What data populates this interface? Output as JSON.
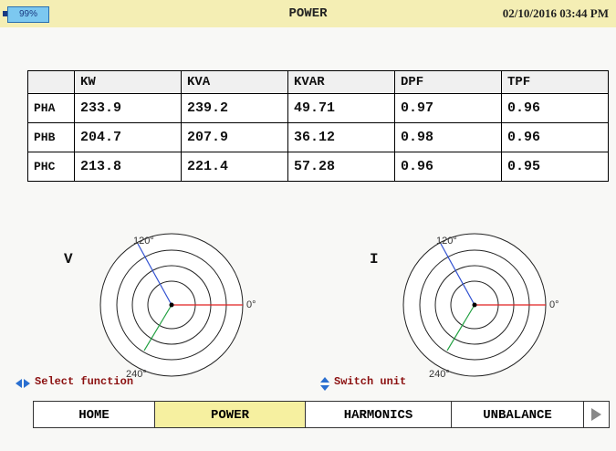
{
  "header": {
    "battery": "99%",
    "title": "POWER",
    "datetime": "02/10/2016 03:44 PM"
  },
  "table": {
    "columns": [
      "KW",
      "KVA",
      "KVAR",
      "DPF",
      "TPF"
    ],
    "rows": [
      {
        "label": "PHA",
        "cells": [
          "233.9",
          "239.2",
          "49.71",
          "0.97",
          "0.96"
        ]
      },
      {
        "label": "PHB",
        "cells": [
          "204.7",
          "207.9",
          "36.12",
          "0.98",
          "0.96"
        ]
      },
      {
        "label": "PHC",
        "cells": [
          "213.8",
          "221.4",
          "57.28",
          "0.96",
          "0.95"
        ]
      }
    ]
  },
  "phasors": [
    {
      "label": "V",
      "angle_labels": [
        "120°",
        "0°",
        "240°"
      ]
    },
    {
      "label": "I",
      "angle_labels": [
        "120°",
        "0°",
        "240°"
      ]
    }
  ],
  "hints": [
    "Select function",
    "Switch unit"
  ],
  "tabs": [
    "HOME",
    "POWER",
    "HARMONICS",
    "UNBALANCE"
  ]
}
